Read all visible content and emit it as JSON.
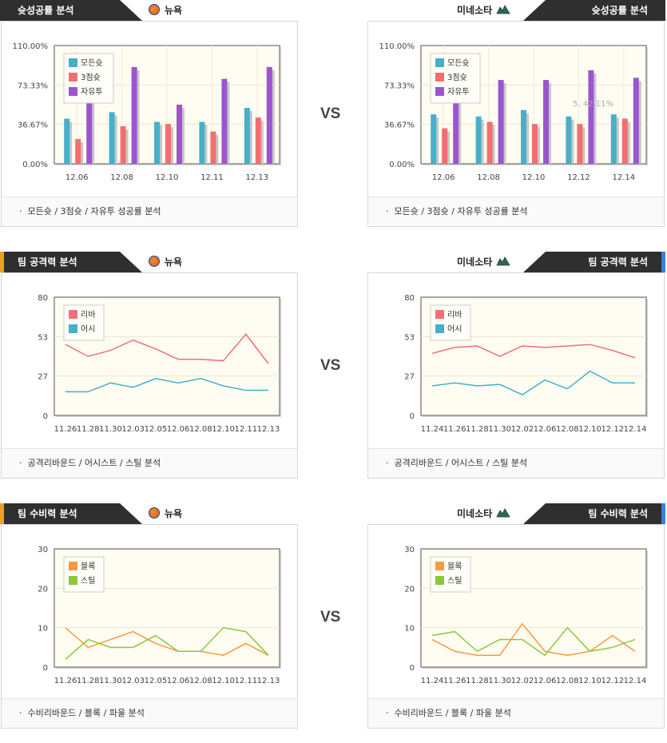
{
  "vs_label": "VS",
  "teams": {
    "left": "뉴욕",
    "right": "미네소타"
  },
  "sections": [
    {
      "title": "슛성공률 분석",
      "footer": "모든슛 / 3점슛 / 자유투 성공률 분석",
      "charts": {
        "left": {
          "type": "bar",
          "categories": [
            "12.06",
            "12.08",
            "12.10",
            "12.11",
            "12.13"
          ],
          "y_ticks": [
            "110.00%",
            "73.33%",
            "36.67%",
            "0.00%"
          ],
          "ylim": [
            0,
            110
          ],
          "series": [
            {
              "name": "모든슛",
              "color": "#45b0c8",
              "values": [
                42,
                48,
                39,
                39,
                52
              ]
            },
            {
              "name": "3점슛",
              "color": "#f07070",
              "values": [
                23,
                35,
                37,
                30,
                43
              ]
            },
            {
              "name": "자유투",
              "color": "#9b55d0",
              "values": [
                62,
                90,
                55,
                79,
                90
              ]
            }
          ]
        },
        "right": {
          "type": "bar",
          "categories": [
            "12.06",
            "12.08",
            "12.10",
            "12.12",
            "12.14"
          ],
          "y_ticks": [
            "110.00%",
            "73.33%",
            "36.67%",
            "0.00%"
          ],
          "ylim": [
            0,
            110
          ],
          "tooltip": "5, 42.11%",
          "series": [
            {
              "name": "모든슛",
              "color": "#45b0c8",
              "values": [
                46,
                44,
                50,
                44,
                46
              ]
            },
            {
              "name": "3점슛",
              "color": "#f07070",
              "values": [
                33,
                39,
                37,
                37,
                42
              ]
            },
            {
              "name": "자유투",
              "color": "#9b55d0",
              "values": [
                60,
                78,
                78,
                87,
                80
              ]
            }
          ]
        }
      }
    },
    {
      "title": "팀 공격력 분석",
      "footer": "공격리바운드 / 어시스트 / 스틸 분석",
      "charts": {
        "left": {
          "type": "line",
          "categories": [
            "11.26",
            "11.28",
            "11.30",
            "12.03",
            "12.05",
            "12.06",
            "12.08",
            "12.10",
            "12.11",
            "12.13"
          ],
          "y_ticks": [
            "80",
            "53",
            "27",
            "0"
          ],
          "ylim": [
            0,
            80
          ],
          "series": [
            {
              "name": "리바",
              "color": "#f07078",
              "values": [
                48,
                40,
                44,
                51,
                45,
                38,
                38,
                37,
                55,
                35
              ]
            },
            {
              "name": "어시",
              "color": "#45b0c8",
              "values": [
                16,
                16,
                22,
                19,
                25,
                22,
                25,
                20,
                17,
                17
              ]
            }
          ]
        },
        "right": {
          "type": "line",
          "categories": [
            "11.24",
            "11.26",
            "11.28",
            "11.30",
            "12.02",
            "12.06",
            "12.08",
            "12.10",
            "12.12",
            "12.14"
          ],
          "y_ticks": [
            "80",
            "53",
            "27",
            "0"
          ],
          "ylim": [
            0,
            80
          ],
          "series": [
            {
              "name": "리바",
              "color": "#f07078",
              "values": [
                42,
                46,
                47,
                40,
                47,
                46,
                47,
                48,
                44,
                39
              ]
            },
            {
              "name": "어시",
              "color": "#45b0c8",
              "values": [
                20,
                22,
                20,
                21,
                14,
                24,
                18,
                30,
                22,
                22
              ]
            }
          ]
        }
      }
    },
    {
      "title": "팀 수비력 분석",
      "footer": "수비리바운드 / 블록 / 파울 분석",
      "charts": {
        "left": {
          "type": "line",
          "categories": [
            "11.26",
            "11.28",
            "11.30",
            "12.03",
            "12.05",
            "12.06",
            "12.08",
            "12.10",
            "12.11",
            "12.13"
          ],
          "y_ticks": [
            "30",
            "20",
            "10",
            "0"
          ],
          "ylim": [
            0,
            30
          ],
          "series": [
            {
              "name": "블록",
              "color": "#f79a40",
              "values": [
                10,
                5,
                7,
                9,
                6,
                4,
                4,
                3,
                6,
                3
              ]
            },
            {
              "name": "스틸",
              "color": "#8cc83c",
              "values": [
                2,
                7,
                5,
                5,
                8,
                4,
                4,
                10,
                9,
                3
              ]
            }
          ]
        },
        "right": {
          "type": "line",
          "categories": [
            "11.24",
            "11.26",
            "11.28",
            "11.30",
            "12.02",
            "12.06",
            "12.08",
            "12.10",
            "12.12",
            "12.14"
          ],
          "y_ticks": [
            "30",
            "20",
            "10",
            "0"
          ],
          "ylim": [
            0,
            30
          ],
          "series": [
            {
              "name": "블록",
              "color": "#f79a40",
              "values": [
                7,
                4,
                3,
                3,
                11,
                4,
                3,
                4,
                8,
                4
              ]
            },
            {
              "name": "스틸",
              "color": "#8cc83c",
              "values": [
                8,
                9,
                4,
                7,
                7,
                3,
                10,
                4,
                5,
                7
              ]
            }
          ]
        }
      }
    }
  ]
}
